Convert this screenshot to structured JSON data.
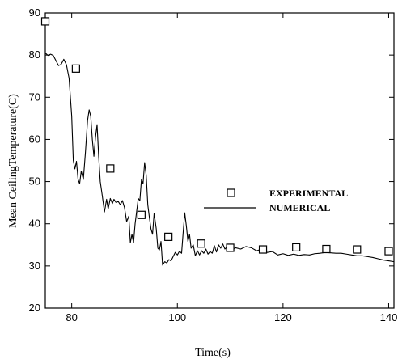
{
  "chart_data": {
    "type": "line",
    "title": "",
    "xlabel": "Time(s)",
    "ylabel": "Mean CeilingTemperature(C)",
    "xlim": [
      75,
      141
    ],
    "ylim": [
      20,
      90
    ],
    "x_ticks": [
      80,
      100,
      120,
      140
    ],
    "y_ticks": [
      20,
      30,
      40,
      50,
      60,
      70,
      80,
      90
    ],
    "grid": false,
    "legend": {
      "placement": "right-middle",
      "entries": [
        {
          "label": "EXPERIMENTAL",
          "marker": "open-square"
        },
        {
          "label": "NUMERICAL",
          "marker": "line"
        }
      ]
    },
    "series": [
      {
        "name": "EXPERIMENTAL",
        "kind": "scatter",
        "marker": "open-square",
        "color": "#000000",
        "points": [
          [
            75,
            88.0
          ],
          [
            80.8,
            76.8
          ],
          [
            87.3,
            53.1
          ],
          [
            93.2,
            42.1
          ],
          [
            98.3,
            36.9
          ],
          [
            104.5,
            35.3
          ],
          [
            110.0,
            34.3
          ],
          [
            116.2,
            33.9
          ],
          [
            122.5,
            34.4
          ],
          [
            128.2,
            34.0
          ],
          [
            134.0,
            33.9
          ],
          [
            140.0,
            33.5
          ]
        ]
      },
      {
        "name": "NUMERICAL",
        "kind": "line",
        "color": "#000000",
        "points": [
          [
            75.0,
            80.5
          ],
          [
            75.5,
            79.9
          ],
          [
            76.0,
            80.2
          ],
          [
            76.5,
            79.9
          ],
          [
            77.0,
            78.7
          ],
          [
            77.5,
            77.5
          ],
          [
            78.0,
            77.8
          ],
          [
            78.5,
            79.0
          ],
          [
            79.0,
            77.7
          ],
          [
            79.5,
            74.5
          ],
          [
            80.0,
            65.5
          ],
          [
            80.3,
            55.0
          ],
          [
            80.6,
            53.0
          ],
          [
            80.9,
            54.8
          ],
          [
            81.2,
            50.5
          ],
          [
            81.5,
            49.5
          ],
          [
            81.8,
            52.5
          ],
          [
            82.2,
            50.5
          ],
          [
            82.6,
            57.0
          ],
          [
            83.0,
            64.5
          ],
          [
            83.3,
            67.0
          ],
          [
            83.6,
            65.5
          ],
          [
            83.9,
            60.0
          ],
          [
            84.2,
            56.0
          ],
          [
            84.5,
            60.5
          ],
          [
            84.8,
            63.5
          ],
          [
            85.1,
            56.0
          ],
          [
            85.4,
            50.0
          ],
          [
            85.8,
            46.5
          ],
          [
            86.2,
            42.8
          ],
          [
            86.6,
            45.8
          ],
          [
            86.9,
            43.5
          ],
          [
            87.3,
            46.0
          ],
          [
            87.7,
            44.8
          ],
          [
            88.0,
            45.8
          ],
          [
            88.4,
            45.0
          ],
          [
            88.8,
            45.3
          ],
          [
            89.2,
            44.5
          ],
          [
            89.6,
            45.5
          ],
          [
            90.0,
            43.8
          ],
          [
            90.4,
            40.5
          ],
          [
            90.8,
            41.8
          ],
          [
            91.1,
            35.5
          ],
          [
            91.4,
            37.5
          ],
          [
            91.7,
            35.5
          ],
          [
            92.0,
            40.0
          ],
          [
            92.3,
            43.0
          ],
          [
            92.6,
            46.0
          ],
          [
            92.9,
            45.5
          ],
          [
            93.2,
            50.5
          ],
          [
            93.5,
            49.5
          ],
          [
            93.8,
            54.5
          ],
          [
            94.1,
            51.5
          ],
          [
            94.4,
            44.5
          ],
          [
            94.7,
            41.5
          ],
          [
            95.0,
            38.8
          ],
          [
            95.3,
            37.5
          ],
          [
            95.6,
            42.5
          ],
          [
            96.0,
            38.8
          ],
          [
            96.3,
            34.2
          ],
          [
            96.6,
            33.8
          ],
          [
            96.9,
            35.8
          ],
          [
            97.2,
            30.2
          ],
          [
            97.6,
            31.0
          ],
          [
            98.0,
            30.7
          ],
          [
            98.4,
            31.5
          ],
          [
            98.8,
            31.2
          ],
          [
            99.2,
            32.2
          ],
          [
            99.6,
            33.2
          ],
          [
            100.0,
            32.6
          ],
          [
            100.4,
            33.5
          ],
          [
            100.8,
            33.0
          ],
          [
            101.1,
            38.0
          ],
          [
            101.4,
            42.6
          ],
          [
            101.7,
            39.5
          ],
          [
            102.0,
            35.8
          ],
          [
            102.3,
            37.5
          ],
          [
            102.6,
            34.2
          ],
          [
            103.0,
            35.0
          ],
          [
            103.4,
            32.4
          ],
          [
            103.8,
            33.6
          ],
          [
            104.2,
            32.6
          ],
          [
            104.6,
            33.6
          ],
          [
            105.0,
            33.0
          ],
          [
            105.4,
            34.0
          ],
          [
            105.8,
            32.8
          ],
          [
            106.2,
            33.4
          ],
          [
            106.6,
            33.0
          ],
          [
            107.0,
            34.8
          ],
          [
            107.4,
            33.3
          ],
          [
            107.8,
            35.0
          ],
          [
            108.2,
            34.2
          ],
          [
            108.6,
            35.2
          ],
          [
            109.0,
            34.0
          ],
          [
            109.5,
            34.6
          ],
          [
            110.0,
            33.6
          ],
          [
            111.0,
            34.3
          ],
          [
            112.0,
            34.0
          ],
          [
            113.0,
            34.6
          ],
          [
            114.0,
            34.3
          ],
          [
            115.0,
            33.6
          ],
          [
            116.0,
            34.0
          ],
          [
            117.0,
            33.2
          ],
          [
            118.0,
            33.4
          ],
          [
            119.0,
            32.6
          ],
          [
            120.0,
            32.9
          ],
          [
            121.0,
            32.5
          ],
          [
            122.0,
            32.8
          ],
          [
            123.0,
            32.5
          ],
          [
            124.0,
            32.7
          ],
          [
            125.0,
            32.6
          ],
          [
            126.0,
            32.9
          ],
          [
            127.0,
            33.0
          ],
          [
            128.0,
            33.2
          ],
          [
            129.0,
            33.1
          ],
          [
            130.0,
            33.0
          ],
          [
            131.0,
            33.0
          ],
          [
            132.0,
            32.8
          ],
          [
            133.0,
            32.6
          ],
          [
            134.0,
            32.4
          ],
          [
            135.0,
            32.4
          ],
          [
            136.0,
            32.2
          ],
          [
            137.0,
            32.0
          ],
          [
            138.0,
            31.7
          ],
          [
            139.0,
            31.4
          ],
          [
            140.0,
            31.2
          ],
          [
            141.0,
            31.0
          ]
        ]
      }
    ]
  }
}
